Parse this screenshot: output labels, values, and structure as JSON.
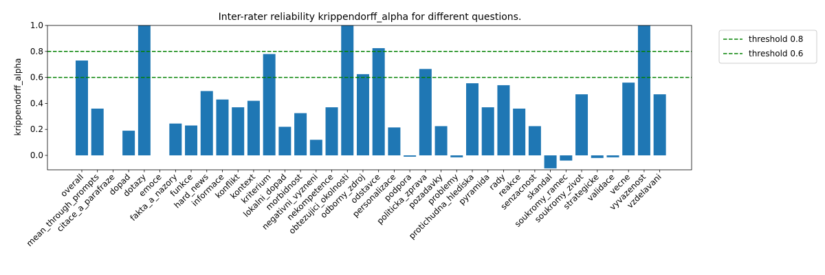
{
  "chart_data": {
    "type": "bar",
    "title": "Inter-rater reliability krippendorff_alpha for different questions.",
    "xlabel": "",
    "ylabel": "krippendorff_alpha",
    "ylim": [
      -0.1,
      1.0
    ],
    "yticks": [
      "0.0",
      "0.2",
      "0.4",
      "0.6",
      "0.8",
      "1.0"
    ],
    "ytick_values": [
      0.0,
      0.2,
      0.4,
      0.6,
      0.8,
      1.0
    ],
    "bar_color": "#1f77b4",
    "threshold_color": "#008000",
    "grid": false,
    "legend_position": "outside-top-right",
    "categories": [
      "overall",
      "mean_through_prompts",
      "citace_a_parafraze",
      "dopad",
      "dotazy",
      "emoce",
      "fakta_a_nazory",
      "funkce",
      "hard_news",
      "informace",
      "konflikt",
      "kontext",
      "kriterium",
      "lokalni_dopad",
      "morbidnost",
      "negativni_vyzneni",
      "nekompetence",
      "obtezujici_okolnosti",
      "odborny_zdroj",
      "odstavce",
      "personalizace",
      "podpora",
      "politicka_zprava",
      "pozadavky",
      "problemy",
      "protichudna_hlediska",
      "pyramida",
      "rady",
      "reakce",
      "senzacnost",
      "skandal",
      "soukromy_ramec",
      "soukromy_zivot",
      "strategicke",
      "validace",
      "vecne",
      "vyvazenost",
      "vzdelavani"
    ],
    "values": [
      0.73,
      0.36,
      null,
      0.19,
      1.0,
      null,
      0.245,
      0.23,
      0.495,
      0.43,
      0.37,
      0.42,
      0.78,
      0.22,
      0.325,
      0.12,
      0.37,
      1.0,
      0.625,
      0.825,
      0.215,
      -0.01,
      0.665,
      0.225,
      -0.015,
      0.555,
      0.37,
      0.54,
      0.36,
      0.225,
      -0.1,
      -0.04,
      0.47,
      -0.02,
      -0.015,
      0.56,
      1.0,
      0.47
    ],
    "thresholds": [
      {
        "label": "threshold 0.8",
        "value": 0.8
      },
      {
        "label": "threshold 0.6",
        "value": 0.6
      }
    ]
  }
}
